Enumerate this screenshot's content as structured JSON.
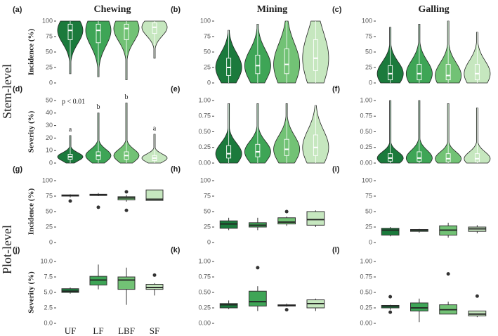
{
  "row_labels": [
    "Stem-level",
    "Plot-level"
  ],
  "chart_data": [
    {
      "type": "violin",
      "panel": "(a)",
      "title": "Chewing",
      "ylabel": "Incidence (%)",
      "categories": [
        null,
        null,
        null,
        null
      ],
      "ylim": [
        0,
        100
      ],
      "yticks": [
        0,
        25,
        50,
        75,
        100
      ],
      "boxes": [
        {
          "color": "#1b7a3c",
          "stats": [
            15,
            70,
            85,
            95,
            100
          ],
          "outliers": []
        },
        {
          "color": "#3ea556",
          "stats": [
            10,
            65,
            85,
            95,
            100
          ],
          "outliers": []
        },
        {
          "color": "#72c275",
          "stats": [
            5,
            70,
            88,
            95,
            100
          ],
          "outliers": []
        },
        {
          "color": "#c6e7bf",
          "stats": [
            40,
            80,
            90,
            97,
            100
          ],
          "outliers": []
        }
      ]
    },
    {
      "type": "violin",
      "panel": "(b)",
      "title": "Mining",
      "categories": [
        null,
        null,
        null,
        null
      ],
      "ylim": [
        0,
        100
      ],
      "yticks": [
        0,
        25,
        50,
        75,
        100
      ],
      "boxes": [
        {
          "color": "#1b7a3c",
          "stats": [
            0,
            12,
            25,
            40,
            85
          ],
          "outliers": []
        },
        {
          "color": "#3ea556",
          "stats": [
            0,
            15,
            28,
            45,
            95
          ],
          "outliers": []
        },
        {
          "color": "#72c275",
          "stats": [
            0,
            15,
            30,
            55,
            100
          ],
          "outliers": []
        },
        {
          "color": "#c6e7bf",
          "stats": [
            0,
            20,
            40,
            70,
            100
          ],
          "outliers": []
        }
      ]
    },
    {
      "type": "violin",
      "panel": "(c)",
      "title": "Galling",
      "categories": [
        null,
        null,
        null,
        null
      ],
      "ylim": [
        0,
        100
      ],
      "yticks": [
        0,
        25,
        50,
        75,
        100
      ],
      "boxes": [
        {
          "color": "#1b7a3c",
          "stats": [
            0,
            5,
            15,
            28,
            90
          ],
          "outliers": []
        },
        {
          "color": "#3ea556",
          "stats": [
            0,
            5,
            15,
            30,
            95
          ],
          "outliers": []
        },
        {
          "color": "#72c275",
          "stats": [
            0,
            5,
            12,
            30,
            100
          ],
          "outliers": []
        },
        {
          "color": "#c6e7bf",
          "stats": [
            0,
            5,
            15,
            30,
            82
          ],
          "outliers": []
        }
      ]
    },
    {
      "type": "violin",
      "panel": "(d)",
      "ylabel": "Severity (%)",
      "annotation": "p < 0.01",
      "group_letters": [
        "a",
        "b",
        "b",
        "a"
      ],
      "categories": [
        null,
        null,
        null,
        null
      ],
      "ylim": [
        0,
        50
      ],
      "yticks": [
        0,
        10,
        20,
        30,
        40,
        50
      ],
      "boxes": [
        {
          "color": "#1b7a3c",
          "stats": [
            0,
            3,
            5,
            7,
            22
          ],
          "outliers": []
        },
        {
          "color": "#3ea556",
          "stats": [
            0,
            3,
            6,
            9,
            40
          ],
          "outliers": []
        },
        {
          "color": "#72c275",
          "stats": [
            0,
            3,
            6,
            9,
            48
          ],
          "outliers": []
        },
        {
          "color": "#c6e7bf",
          "stats": [
            0,
            2,
            4,
            6,
            23
          ],
          "outliers": []
        }
      ]
    },
    {
      "type": "violin",
      "panel": "(e)",
      "categories": [
        null,
        null,
        null,
        null
      ],
      "ylim": [
        0,
        1
      ],
      "yticks": [
        {
          "value": 0,
          "label": "0.00"
        },
        {
          "value": 0.25,
          "label": "0.25"
        },
        {
          "value": 0.5,
          "label": "0.50"
        },
        {
          "value": 0.75,
          "label": "0.75"
        },
        {
          "value": 1,
          "label": "1.00"
        }
      ],
      "boxes": [
        {
          "color": "#1b7a3c",
          "stats": [
            0,
            0.08,
            0.15,
            0.28,
            0.95
          ],
          "outliers": []
        },
        {
          "color": "#3ea556",
          "stats": [
            0,
            0.1,
            0.18,
            0.3,
            0.95
          ],
          "outliers": []
        },
        {
          "color": "#72c275",
          "stats": [
            0,
            0.12,
            0.22,
            0.38,
            0.95
          ],
          "outliers": []
        },
        {
          "color": "#c6e7bf",
          "stats": [
            0,
            0.12,
            0.25,
            0.45,
            0.92
          ],
          "outliers": []
        }
      ]
    },
    {
      "type": "violin",
      "panel": "(f)",
      "categories": [
        null,
        null,
        null,
        null
      ],
      "ylim": [
        0,
        1
      ],
      "yticks": [
        {
          "value": 0,
          "label": "0.00"
        },
        {
          "value": 0.25,
          "label": "0.25"
        },
        {
          "value": 0.5,
          "label": "0.50"
        },
        {
          "value": 0.75,
          "label": "0.75"
        },
        {
          "value": 1,
          "label": "1.00"
        }
      ],
      "boxes": [
        {
          "color": "#1b7a3c",
          "stats": [
            0,
            0.03,
            0.08,
            0.15,
            1
          ],
          "outliers": []
        },
        {
          "color": "#3ea556",
          "stats": [
            0,
            0.03,
            0.08,
            0.18,
            1
          ],
          "outliers": []
        },
        {
          "color": "#72c275",
          "stats": [
            0,
            0.02,
            0.07,
            0.15,
            0.95
          ],
          "outliers": []
        },
        {
          "color": "#c6e7bf",
          "stats": [
            0,
            0.02,
            0.07,
            0.15,
            0.88
          ],
          "outliers": []
        }
      ]
    },
    {
      "type": "box",
      "panel": "(g)",
      "ylabel": "Incidence (%)",
      "categories": [
        null,
        null,
        null,
        null
      ],
      "ylim": [
        0,
        100
      ],
      "yticks": [
        0,
        25,
        50,
        75,
        100
      ],
      "boxes": [
        {
          "color": "#1b7a3c",
          "stats": [
            73,
            75,
            76,
            77,
            78
          ],
          "outliers": [
            67
          ]
        },
        {
          "color": "#3ea556",
          "stats": [
            75,
            76,
            77,
            78,
            80
          ],
          "outliers": [
            57
          ]
        },
        {
          "color": "#72c275",
          "stats": [
            66,
            69,
            72,
            74,
            77
          ],
          "outliers": [
            82,
            52
          ]
        },
        {
          "color": "#c6e7bf",
          "stats": [
            68,
            68,
            70,
            85,
            85
          ],
          "outliers": []
        }
      ]
    },
    {
      "type": "box",
      "panel": "(h)",
      "categories": [
        null,
        null,
        null,
        null
      ],
      "ylim": [
        0,
        100
      ],
      "yticks": [
        0,
        25,
        50,
        75,
        100
      ],
      "boxes": [
        {
          "color": "#1b7a3c",
          "stats": [
            20,
            23,
            30,
            35,
            40
          ],
          "outliers": []
        },
        {
          "color": "#3ea556",
          "stats": [
            20,
            25,
            28,
            32,
            40
          ],
          "outliers": []
        },
        {
          "color": "#72c275",
          "stats": [
            27,
            30,
            33,
            40,
            42
          ],
          "outliers": [
            50
          ]
        },
        {
          "color": "#c6e7bf",
          "stats": [
            25,
            28,
            37,
            50,
            52
          ],
          "outliers": []
        }
      ]
    },
    {
      "type": "box",
      "panel": "(i)",
      "categories": [
        null,
        null,
        null,
        null
      ],
      "ylim": [
        0,
        100
      ],
      "yticks": [
        0,
        25,
        50,
        75,
        100
      ],
      "boxes": [
        {
          "color": "#1b7a3c",
          "stats": [
            10,
            12,
            20,
            23,
            25
          ],
          "outliers": []
        },
        {
          "color": "#3ea556",
          "stats": [
            16,
            18,
            20,
            21,
            22
          ],
          "outliers": []
        },
        {
          "color": "#72c275",
          "stats": [
            8,
            12,
            20,
            27,
            32
          ],
          "outliers": []
        },
        {
          "color": "#c6e7bf",
          "stats": [
            15,
            18,
            22,
            25,
            28
          ],
          "outliers": []
        }
      ]
    },
    {
      "type": "box",
      "panel": "(j)",
      "ylabel": "Severity (%)",
      "categories": [
        "UF",
        "LF",
        "LBF",
        "SF"
      ],
      "ylim": [
        0,
        10
      ],
      "yticks": [
        {
          "value": 0,
          "label": "0.0"
        },
        {
          "value": 2.5,
          "label": "2.5"
        },
        {
          "value": 5,
          "label": "5.0"
        },
        {
          "value": 7.5,
          "label": "7.5"
        },
        {
          "value": 10,
          "label": "10.0"
        }
      ],
      "boxes": [
        {
          "color": "#1b7a3c",
          "stats": [
            4.8,
            5,
            5.2,
            5.6,
            5.8
          ],
          "outliers": []
        },
        {
          "color": "#3ea556",
          "stats": [
            5.5,
            6.2,
            7,
            7.6,
            9.5
          ],
          "outliers": []
        },
        {
          "color": "#72c275",
          "stats": [
            3,
            5.5,
            7,
            7.5,
            9
          ],
          "outliers": []
        },
        {
          "color": "#c6e7bf",
          "stats": [
            4.5,
            5.5,
            5.8,
            6.3,
            6.5
          ],
          "outliers": [
            7.8
          ]
        }
      ]
    },
    {
      "type": "box",
      "panel": "(k)",
      "categories": [
        null,
        null,
        null,
        null
      ],
      "ylim": [
        0,
        1
      ],
      "yticks": [
        {
          "value": 0,
          "label": "0.00"
        },
        {
          "value": 0.25,
          "label": "0.25"
        },
        {
          "value": 0.5,
          "label": "0.50"
        },
        {
          "value": 0.75,
          "label": "0.75"
        },
        {
          "value": 1,
          "label": "1.00"
        }
      ],
      "boxes": [
        {
          "color": "#1b7a3c",
          "stats": [
            0.23,
            0.25,
            0.3,
            0.32,
            0.37
          ],
          "outliers": []
        },
        {
          "color": "#3ea556",
          "stats": [
            0.2,
            0.28,
            0.35,
            0.52,
            0.6
          ],
          "outliers": [
            0.9
          ]
        },
        {
          "color": "#72c275",
          "stats": [
            0.27,
            0.28,
            0.29,
            0.3,
            0.32
          ],
          "outliers": [
            0.22
          ]
        },
        {
          "color": "#c6e7bf",
          "stats": [
            0.2,
            0.25,
            0.32,
            0.38,
            0.4
          ],
          "outliers": []
        }
      ]
    },
    {
      "type": "box",
      "panel": "(l)",
      "categories": [
        null,
        null,
        null,
        null
      ],
      "ylim": [
        0,
        1
      ],
      "yticks": [
        {
          "value": 0,
          "label": "0.00"
        },
        {
          "value": 0.25,
          "label": "0.25"
        },
        {
          "value": 0.5,
          "label": "0.50"
        },
        {
          "value": 0.75,
          "label": "0.75"
        },
        {
          "value": 1,
          "label": "1.00"
        }
      ],
      "boxes": [
        {
          "color": "#1b7a3c",
          "stats": [
            0.22,
            0.25,
            0.28,
            0.29,
            0.3
          ],
          "outliers": [
            0.43,
            0.18
          ]
        },
        {
          "color": "#3ea556",
          "stats": [
            0.02,
            0.2,
            0.25,
            0.33,
            0.4
          ],
          "outliers": []
        },
        {
          "color": "#72c275",
          "stats": [
            0.15,
            0.15,
            0.22,
            0.3,
            0.35
          ],
          "outliers": [
            0.8
          ]
        },
        {
          "color": "#c6e7bf",
          "stats": [
            0.1,
            0.12,
            0.15,
            0.2,
            0.2
          ],
          "outliers": [
            0.44
          ]
        }
      ]
    }
  ]
}
